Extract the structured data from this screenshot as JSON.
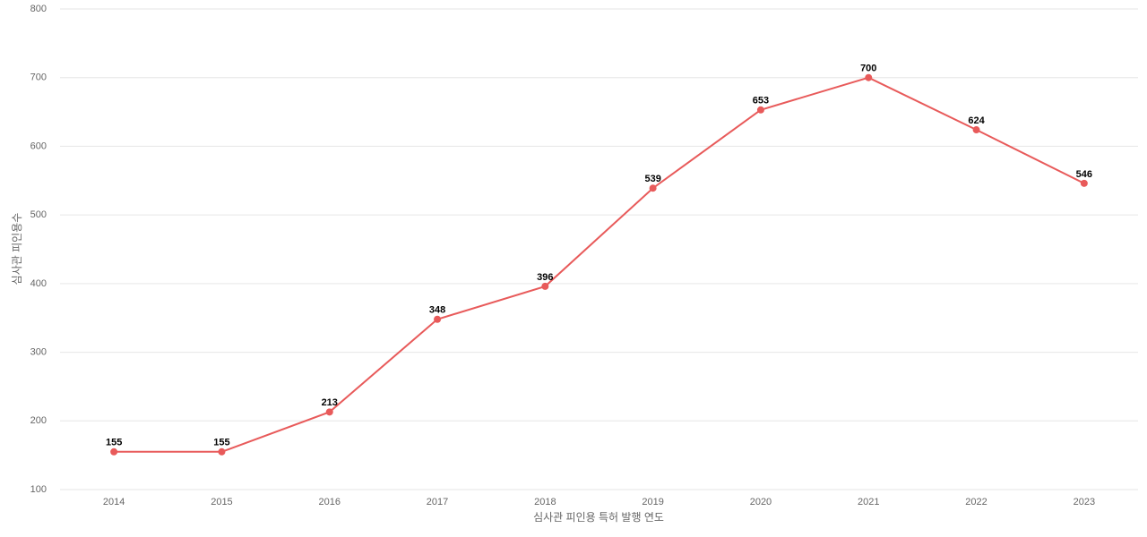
{
  "chart_data": {
    "type": "line",
    "x_label": "심사관 피인용 특허 발행 연도",
    "y_label": "심사관 피인용수",
    "categories": [
      "2014",
      "2015",
      "2016",
      "2017",
      "2018",
      "2019",
      "2020",
      "2021",
      "2022",
      "2023"
    ],
    "series": [
      {
        "name": "심사관 피인용수",
        "color": "#e85a5a",
        "values": [
          155,
          155,
          213,
          348,
          396,
          539,
          653,
          700,
          624,
          546
        ]
      }
    ],
    "ylim": [
      100,
      800
    ],
    "yticks": [
      100,
      200,
      300,
      400,
      500,
      600,
      700,
      800
    ],
    "grid": true
  }
}
